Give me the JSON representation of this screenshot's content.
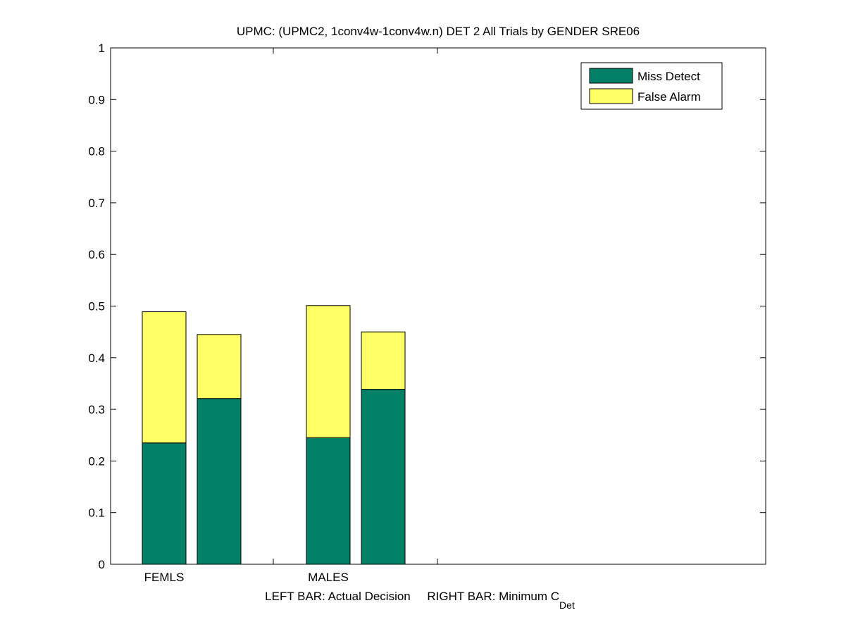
{
  "chart_data": {
    "type": "bar",
    "stacked": true,
    "title": "UPMC: (UPMC2, 1conv4w-1conv4w.n) DET 2 All Trials by GENDER SRE06",
    "xlabel_left": "LEFT BAR: Actual Decision",
    "xlabel_right_main": "RIGHT BAR: Minimum C",
    "xlabel_right_sub": "Det",
    "categories": [
      "FEMLS",
      "MALES"
    ],
    "bar_roles": [
      "Actual Decision",
      "Minimum CDet"
    ],
    "series": [
      {
        "name": "Miss Detect",
        "color": "#008066",
        "values": [
          [
            0.235,
            0.321
          ],
          [
            0.245,
            0.339
          ]
        ]
      },
      {
        "name": "False Alarm",
        "color": "#ffff66",
        "values": [
          [
            0.254,
            0.124
          ],
          [
            0.256,
            0.111
          ]
        ]
      }
    ],
    "totals": [
      [
        0.489,
        0.445
      ],
      [
        0.501,
        0.45
      ]
    ],
    "ylim": [
      0,
      1
    ],
    "yticks": [
      "0",
      "0.1",
      "0.2",
      "0.3",
      "0.4",
      "0.5",
      "0.6",
      "0.7",
      "0.8",
      "0.9",
      "1"
    ],
    "grid": false,
    "legend_position": "top-right"
  }
}
